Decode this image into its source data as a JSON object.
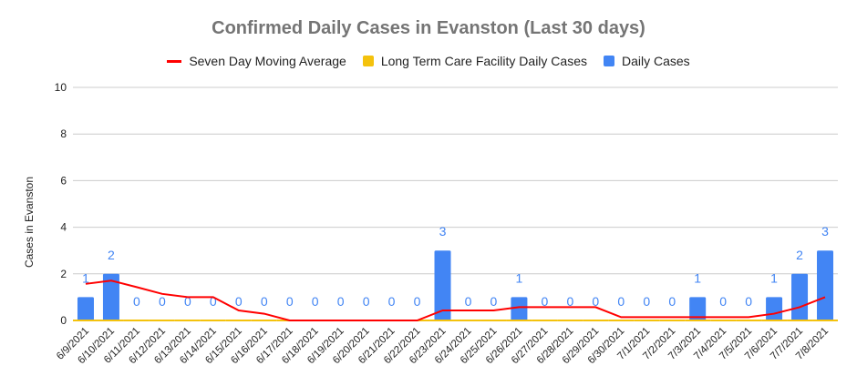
{
  "chart_data": {
    "type": "bar",
    "title": "Confirmed Daily Cases in Evanston (Last 30 days)",
    "xlabel": "",
    "ylabel": "Cases in Evanston",
    "ylim": [
      0,
      10
    ],
    "yticks": [
      "0",
      "2",
      "4",
      "6",
      "8",
      "10"
    ],
    "grid": true,
    "legend_position": "top",
    "categories": [
      "6/9/2021",
      "6/10/2021",
      "6/11/2021",
      "6/12/2021",
      "6/13/2021",
      "6/14/2021",
      "6/15/2021",
      "6/16/2021",
      "6/17/2021",
      "6/18/2021",
      "6/19/2021",
      "6/20/2021",
      "6/21/2021",
      "6/22/2021",
      "6/23/2021",
      "6/24/2021",
      "6/25/2021",
      "6/26/2021",
      "6/27/2021",
      "6/28/2021",
      "6/29/2021",
      "6/30/2021",
      "7/1/2021",
      "7/2/2021",
      "7/3/2021",
      "7/4/2021",
      "7/5/2021",
      "7/6/2021",
      "7/7/2021",
      "7/8/2021"
    ],
    "series": [
      {
        "name": "Seven Day Moving Average",
        "type": "line",
        "color": "#ff0000",
        "values": [
          1.57,
          1.71,
          1.43,
          1.14,
          1.0,
          1.0,
          0.43,
          0.29,
          0,
          0,
          0,
          0,
          0,
          0,
          0.43,
          0.43,
          0.43,
          0.57,
          0.57,
          0.57,
          0.57,
          0.14,
          0.14,
          0.14,
          0.14,
          0.14,
          0.14,
          0.29,
          0.57,
          1.0
        ]
      },
      {
        "name": "Long Term Care Facility Daily Cases",
        "type": "bar",
        "color": "#f4c20d",
        "values": [
          0,
          0,
          0,
          0,
          0,
          0,
          0,
          0,
          0,
          0,
          0,
          0,
          0,
          0,
          0,
          0,
          0,
          0,
          0,
          0,
          0,
          0,
          0,
          0,
          0,
          0,
          0,
          0,
          0,
          0
        ]
      },
      {
        "name": "Daily Cases",
        "type": "bar",
        "color": "#4285f4",
        "values": [
          1,
          2,
          0,
          0,
          0,
          0,
          0,
          0,
          0,
          0,
          0,
          0,
          0,
          0,
          3,
          0,
          0,
          1,
          0,
          0,
          0,
          0,
          0,
          0,
          1,
          0,
          0,
          1,
          2,
          3
        ]
      }
    ]
  }
}
